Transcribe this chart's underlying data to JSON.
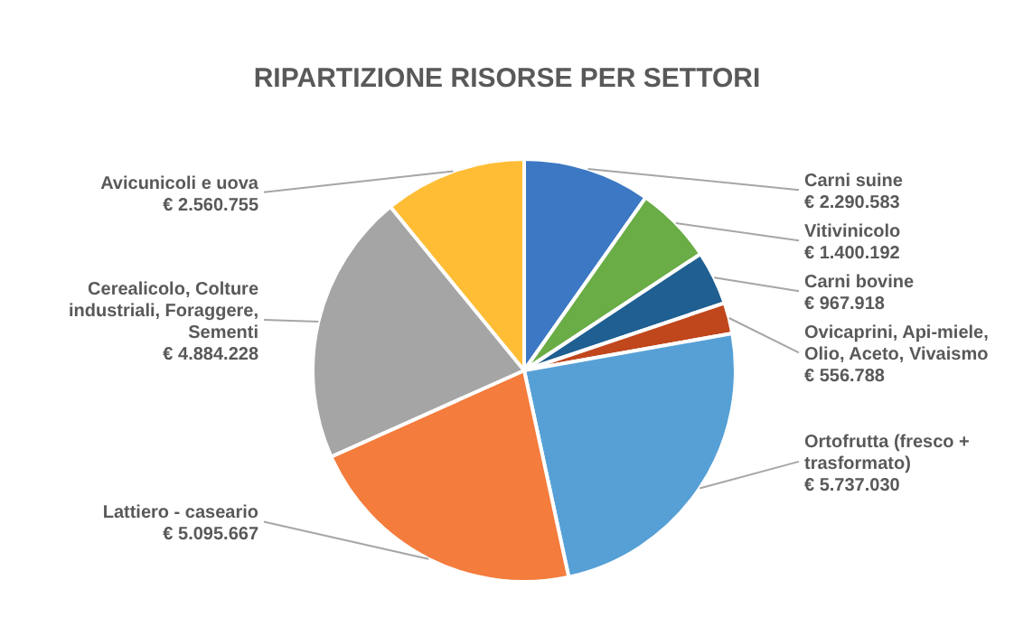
{
  "chart_data": {
    "type": "pie",
    "title": "RIPARTIZIONE RISORSE PER SETTORI",
    "categories": [
      "Carni suine",
      "Vitivinicolo",
      "Carni bovine",
      "Ovicaprini, Api-miele, Olio, Aceto, Vivaismo",
      "Ortofrutta (fresco + trasformato)",
      "Lattiero -  caseario",
      "Cerealicolo, Colture industriali, Foraggere, Sementi",
      "Avicunicoli  e uova"
    ],
    "values": [
      2290583,
      1400192,
      967918,
      556788,
      5737030,
      5095667,
      4884228,
      2560755
    ],
    "value_labels": [
      "€ 2.290.583",
      "€ 1.400.192",
      "€ 967.918",
      "€ 556.788",
      "€ 5.737.030",
      "€ 5.095.667",
      "€ 4.884.228",
      "€ 2.560.755"
    ],
    "colors": [
      "#3c78c3",
      "#6aac46",
      "#1f5f91",
      "#c0461c",
      "#56a0d6",
      "#f47c3c",
      "#a5a5a5",
      "#ffbd36"
    ]
  }
}
